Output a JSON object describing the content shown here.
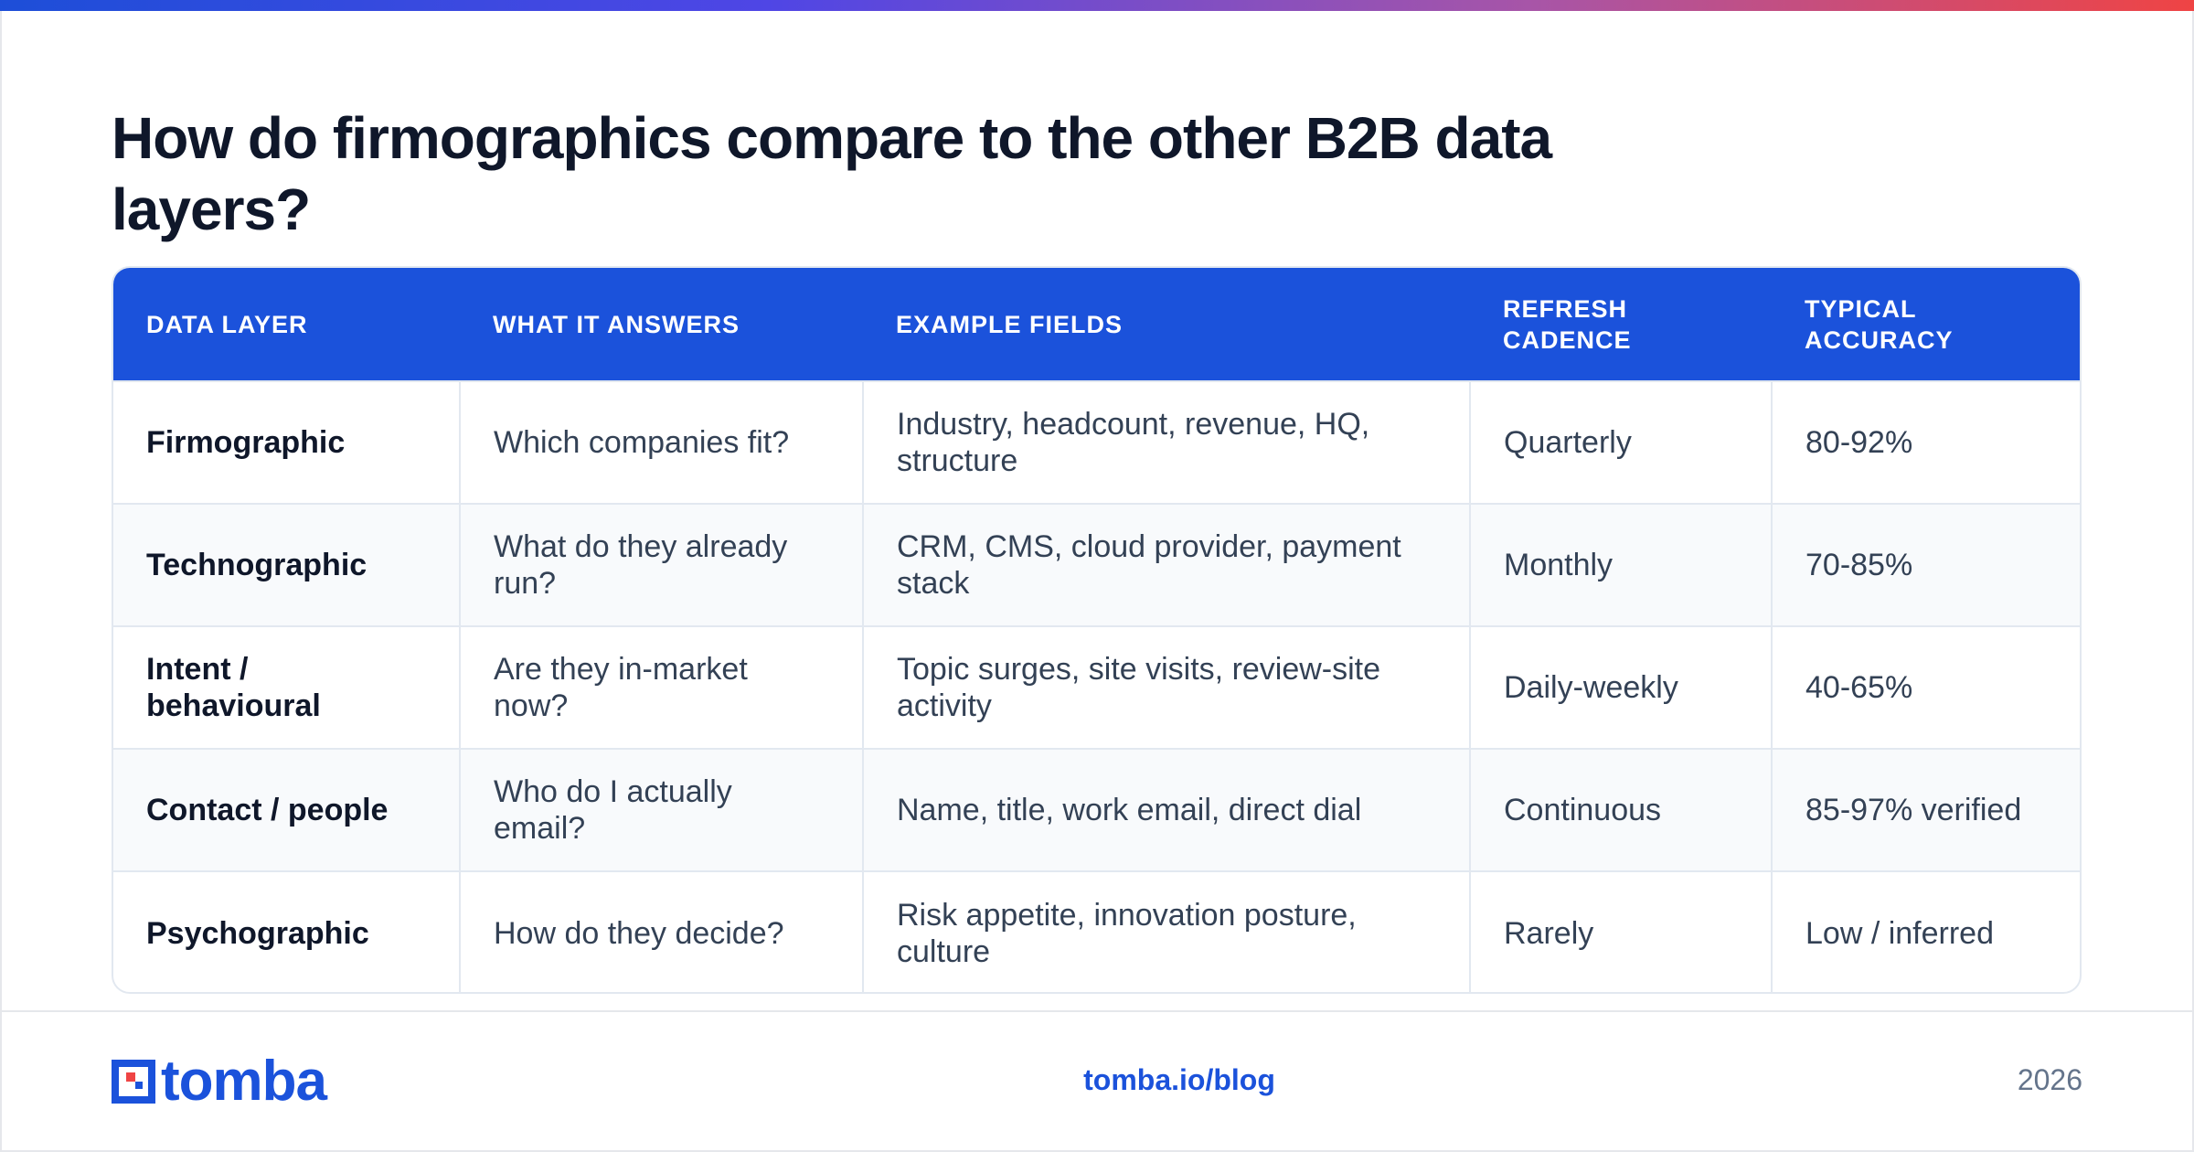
{
  "title": "How do firmographics compare to the other B2B data layers?",
  "colors": {
    "brand": "#1b52db",
    "header_bg": "#1b52db",
    "row_alt": "#f8fafc",
    "border": "#e2e8f0",
    "gradient": [
      "#1d4ed8",
      "#4f46e5",
      "#a855a7",
      "#ef4444"
    ]
  },
  "table": {
    "headers": [
      "DATA LAYER",
      "WHAT IT ANSWERS",
      "EXAMPLE FIELDS",
      "REFRESH CADENCE",
      "TYPICAL ACCURACY"
    ],
    "rows": [
      [
        "Firmographic",
        "Which companies fit?",
        "Industry, headcount, revenue, HQ, structure",
        "Quarterly",
        "80-92%"
      ],
      [
        "Technographic",
        "What do they already run?",
        "CRM, CMS, cloud provider, payment stack",
        "Monthly",
        "70-85%"
      ],
      [
        "Intent / behavioural",
        "Are they in-market now?",
        "Topic surges, site visits, review-site activity",
        "Daily-weekly",
        "40-65%"
      ],
      [
        "Contact / people",
        "Who do I actually email?",
        "Name, title, work email, direct dial",
        "Continuous",
        "85-97% verified"
      ],
      [
        "Psychographic",
        "How do they decide?",
        "Risk appetite, innovation posture, culture",
        "Rarely",
        "Low / inferred"
      ]
    ]
  },
  "footer": {
    "logo_icon": "tomba-logo-icon",
    "logo_text": "tomba",
    "link": "tomba.io/blog",
    "year": "2026"
  }
}
